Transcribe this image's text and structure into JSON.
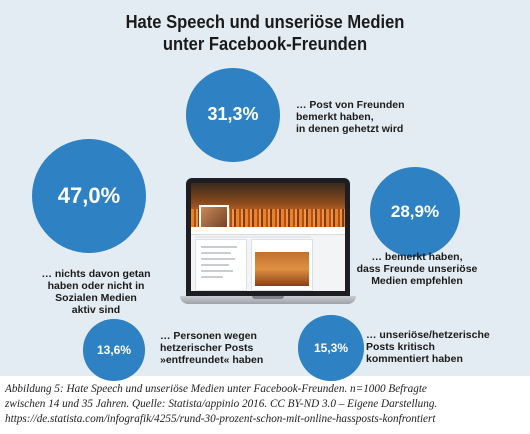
{
  "chart_data": {
    "type": "bubble",
    "title_lines": [
      "Hate Speech und unseriöse Medien",
      "unter Facebook-Freunden"
    ],
    "items": [
      {
        "value": 31.3,
        "display": "31,3%",
        "label_lines": [
          "… Post von Freunden",
          "bemerkt haben,",
          "in denen gehetzt wird"
        ]
      },
      {
        "value": 47.0,
        "display": "47,0%",
        "label_lines": [
          "… nichts davon getan",
          "haben oder nicht in",
          "Sozialen Medien",
          "aktiv sind"
        ]
      },
      {
        "value": 28.9,
        "display": "28,9%",
        "label_lines": [
          "… bemerkt haben,",
          "dass Freunde unseriöse",
          "Medien empfehlen"
        ]
      },
      {
        "value": 13.6,
        "display": "13,6%",
        "label_lines": [
          "… Personen wegen",
          "hetzerischer Posts",
          "»entfreundet« haben"
        ]
      },
      {
        "value": 15.3,
        "display": "15,3%",
        "label_lines": [
          "… unseriöse/hetzerische",
          "Posts kritisch",
          "kommentiert haben"
        ]
      }
    ]
  },
  "caption_lines": [
    "Abbildung 5: Hate Speech und unseriöse Medien unter Facebook-Freunden. n=1000 Befragte",
    "zwischen 14 und 35 Jahren. Quelle: Statista/appinio 2016. CC BY-ND 3.0 – Eigene Darstellung.",
    "https://de.statista.com/infografik/4255/rund-30-prozent-schon-mit-online-hassposts-konfrontiert"
  ],
  "colors": {
    "panel": "#e4ecf3",
    "bubble": "#2e82c3",
    "bubble_text": "#ffffff",
    "label_text": "#1a1a1a"
  }
}
